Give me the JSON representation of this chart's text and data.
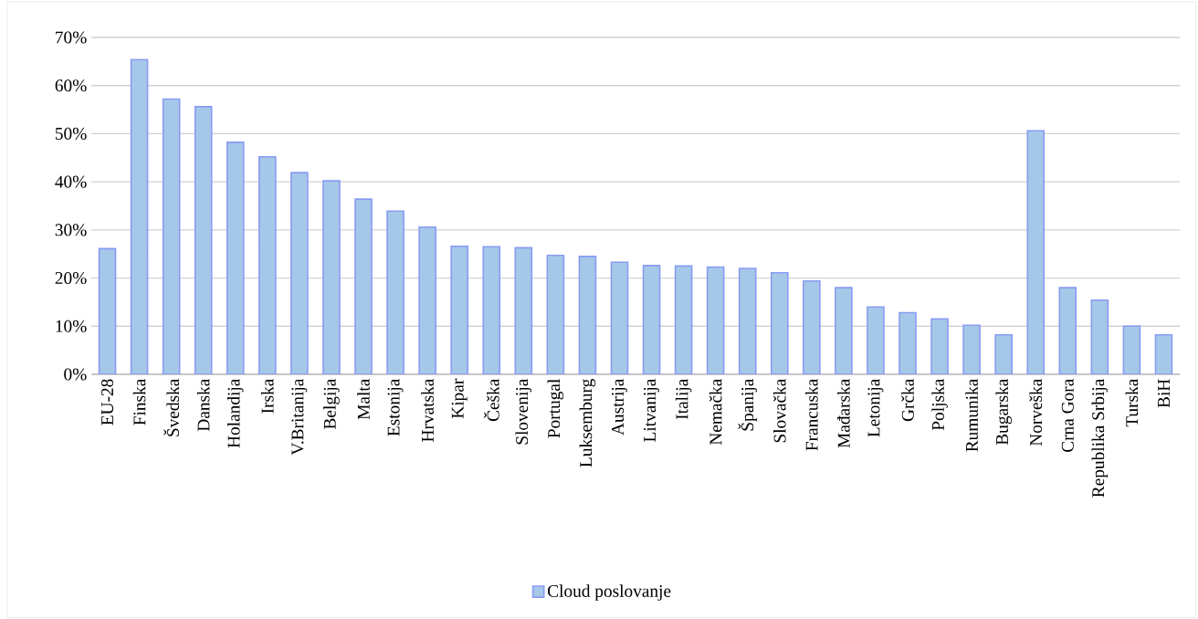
{
  "chart_data": {
    "type": "bar",
    "categories": [
      "EU-28",
      "Finska",
      "Švedska",
      "Danska",
      "Holandija",
      "Irska",
      "V.Britanija",
      "Belgija",
      "Malta",
      "Estonija",
      "Hrvatska",
      "Kipar",
      "Češka",
      "Slovenija",
      "Portugal",
      "Luksemburg",
      "Austrija",
      "Litvanija",
      "Italija",
      "Nemačka",
      "Španija",
      "Slovačka",
      "Francuska",
      "Mađarska",
      "Letonija",
      "Grčka",
      "Poljska",
      "Rumunika",
      "Bugarska",
      "Norveška",
      "Crna Gora",
      "Republika Srbija",
      "Turska",
      "BiH"
    ],
    "series": [
      {
        "name": "Cloud poslovanje",
        "color": "#a5c8e8",
        "values": [
          26.1,
          65.4,
          57.2,
          55.6,
          48.2,
          45.2,
          41.9,
          40.2,
          36.4,
          33.9,
          30.6,
          26.6,
          26.5,
          26.3,
          24.7,
          24.5,
          23.3,
          22.6,
          22.5,
          22.3,
          22.0,
          21.1,
          19.4,
          18.0,
          14.0,
          12.8,
          11.5,
          10.2,
          8.2,
          50.6,
          18.0,
          15.4,
          10.0,
          8.2
        ]
      }
    ],
    "ylim": [
      0,
      70
    ],
    "yticks": [
      {
        "value": 0,
        "label": "0%"
      },
      {
        "value": 10,
        "label": "10%"
      },
      {
        "value": 20,
        "label": "20%"
      },
      {
        "value": 30,
        "label": "30%"
      },
      {
        "value": 40,
        "label": "40%"
      },
      {
        "value": 50,
        "label": "50%"
      },
      {
        "value": 60,
        "label": "60%"
      },
      {
        "value": 70,
        "label": "70%"
      }
    ],
    "grid": "y",
    "legend": "bottom"
  }
}
